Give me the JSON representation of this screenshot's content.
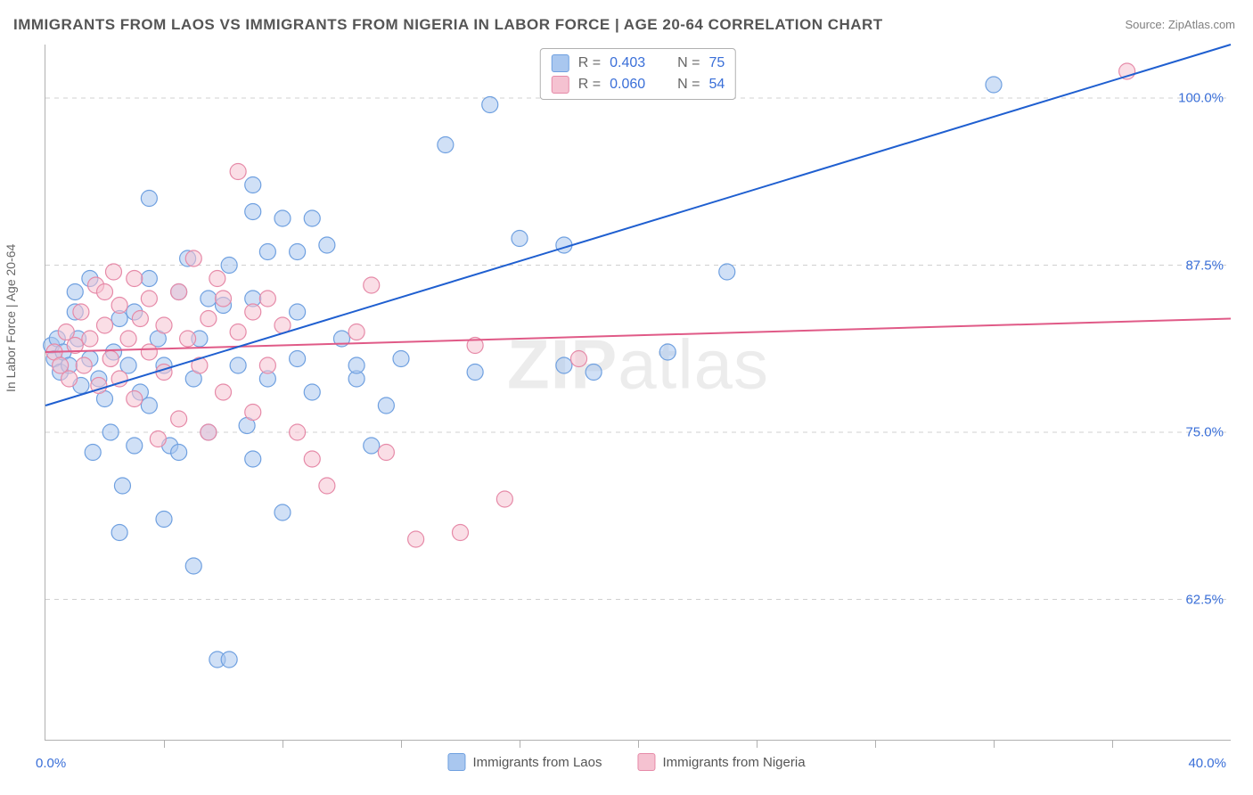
{
  "title": "IMMIGRANTS FROM LAOS VS IMMIGRANTS FROM NIGERIA IN LABOR FORCE | AGE 20-64 CORRELATION CHART",
  "source_label": "Source: ZipAtlas.com",
  "y_axis_title": "In Labor Force | Age 20-64",
  "x_axis": {
    "min": 0.0,
    "max": 40.0,
    "label_min": "0.0%",
    "label_max": "40.0%",
    "tick_positions_pct": [
      10,
      20,
      30,
      40,
      50,
      60,
      70,
      80,
      90
    ]
  },
  "y_axis": {
    "min": 52.0,
    "max": 104.0,
    "gridlines": [
      {
        "value": 62.5,
        "label": "62.5%"
      },
      {
        "value": 75.0,
        "label": "75.0%"
      },
      {
        "value": 87.5,
        "label": "87.5%"
      },
      {
        "value": 100.0,
        "label": "100.0%"
      }
    ]
  },
  "watermark": {
    "bold": "ZIP",
    "rest": "atlas"
  },
  "series": {
    "laos": {
      "label": "Immigrants from Laos",
      "fill": "#a9c7ef",
      "stroke": "#6fa0e0",
      "opacity": 0.55,
      "line_color": "#1f5fd0",
      "line_width": 2,
      "r_value": "0.403",
      "n_value": "75",
      "trend_start": {
        "x": 0.0,
        "y": 77.0
      },
      "trend_end": {
        "x": 40.0,
        "y": 104.0
      },
      "points": [
        {
          "x": 0.2,
          "y": 81.5
        },
        {
          "x": 0.3,
          "y": 80.5
        },
        {
          "x": 0.4,
          "y": 82.0
        },
        {
          "x": 0.5,
          "y": 79.5
        },
        {
          "x": 0.6,
          "y": 81.0
        },
        {
          "x": 0.8,
          "y": 80.0
        },
        {
          "x": 1.0,
          "y": 84.0
        },
        {
          "x": 1.1,
          "y": 82.0
        },
        {
          "x": 1.2,
          "y": 78.5
        },
        {
          "x": 1.0,
          "y": 85.5
        },
        {
          "x": 1.5,
          "y": 80.5
        },
        {
          "x": 1.5,
          "y": 86.5
        },
        {
          "x": 1.6,
          "y": 73.5
        },
        {
          "x": 1.8,
          "y": 79.0
        },
        {
          "x": 2.0,
          "y": 77.5
        },
        {
          "x": 2.2,
          "y": 75.0
        },
        {
          "x": 2.3,
          "y": 81.0
        },
        {
          "x": 2.5,
          "y": 83.5
        },
        {
          "x": 2.5,
          "y": 67.5
        },
        {
          "x": 2.6,
          "y": 71.0
        },
        {
          "x": 2.8,
          "y": 80.0
        },
        {
          "x": 3.0,
          "y": 84.0
        },
        {
          "x": 3.0,
          "y": 74.0
        },
        {
          "x": 3.2,
          "y": 78.0
        },
        {
          "x": 3.5,
          "y": 86.5
        },
        {
          "x": 3.5,
          "y": 77.0
        },
        {
          "x": 3.8,
          "y": 82.0
        },
        {
          "x": 3.5,
          "y": 92.5
        },
        {
          "x": 4.0,
          "y": 80.0
        },
        {
          "x": 4.0,
          "y": 68.5
        },
        {
          "x": 4.2,
          "y": 74.0
        },
        {
          "x": 4.5,
          "y": 85.5
        },
        {
          "x": 4.5,
          "y": 73.5
        },
        {
          "x": 4.8,
          "y": 88.0
        },
        {
          "x": 5.0,
          "y": 79.0
        },
        {
          "x": 5.0,
          "y": 65.0
        },
        {
          "x": 5.2,
          "y": 82.0
        },
        {
          "x": 5.5,
          "y": 85.0
        },
        {
          "x": 5.5,
          "y": 75.0
        },
        {
          "x": 5.8,
          "y": 58.0
        },
        {
          "x": 6.0,
          "y": 84.5
        },
        {
          "x": 6.2,
          "y": 58.0
        },
        {
          "x": 6.2,
          "y": 87.5
        },
        {
          "x": 6.5,
          "y": 80.0
        },
        {
          "x": 6.8,
          "y": 75.5
        },
        {
          "x": 7.0,
          "y": 93.5
        },
        {
          "x": 7.0,
          "y": 85.0
        },
        {
          "x": 7.0,
          "y": 73.0
        },
        {
          "x": 7.0,
          "y": 91.5
        },
        {
          "x": 7.5,
          "y": 79.0
        },
        {
          "x": 7.5,
          "y": 88.5
        },
        {
          "x": 8.0,
          "y": 91.0
        },
        {
          "x": 8.0,
          "y": 69.0
        },
        {
          "x": 8.5,
          "y": 80.5
        },
        {
          "x": 8.5,
          "y": 88.5
        },
        {
          "x": 8.5,
          "y": 84.0
        },
        {
          "x": 9.0,
          "y": 78.0
        },
        {
          "x": 9.5,
          "y": 89.0
        },
        {
          "x": 9.0,
          "y": 91.0
        },
        {
          "x": 10.0,
          "y": 82.0
        },
        {
          "x": 10.5,
          "y": 79.0
        },
        {
          "x": 10.5,
          "y": 80.0
        },
        {
          "x": 11.0,
          "y": 74.0
        },
        {
          "x": 11.5,
          "y": 77.0
        },
        {
          "x": 12.0,
          "y": 80.5
        },
        {
          "x": 13.5,
          "y": 96.5
        },
        {
          "x": 14.5,
          "y": 79.5
        },
        {
          "x": 15.0,
          "y": 99.5
        },
        {
          "x": 16.0,
          "y": 89.5
        },
        {
          "x": 17.5,
          "y": 89.0
        },
        {
          "x": 17.5,
          "y": 80.0
        },
        {
          "x": 18.5,
          "y": 79.5
        },
        {
          "x": 21.0,
          "y": 81.0
        },
        {
          "x": 23.0,
          "y": 87.0
        },
        {
          "x": 32.0,
          "y": 101.0
        }
      ]
    },
    "nigeria": {
      "label": "Immigrants from Nigeria",
      "fill": "#f5c2d1",
      "stroke": "#e68aa8",
      "opacity": 0.55,
      "line_color": "#e05a87",
      "line_width": 2,
      "r_value": "0.060",
      "n_value": "54",
      "trend_start": {
        "x": 0.0,
        "y": 81.0
      },
      "trend_end": {
        "x": 40.0,
        "y": 83.5
      },
      "points": [
        {
          "x": 0.3,
          "y": 81.0
        },
        {
          "x": 0.5,
          "y": 80.0
        },
        {
          "x": 0.7,
          "y": 82.5
        },
        {
          "x": 0.8,
          "y": 79.0
        },
        {
          "x": 1.0,
          "y": 81.5
        },
        {
          "x": 1.2,
          "y": 84.0
        },
        {
          "x": 1.3,
          "y": 80.0
        },
        {
          "x": 1.5,
          "y": 82.0
        },
        {
          "x": 1.7,
          "y": 86.0
        },
        {
          "x": 1.8,
          "y": 78.5
        },
        {
          "x": 2.0,
          "y": 83.0
        },
        {
          "x": 2.0,
          "y": 85.5
        },
        {
          "x": 2.2,
          "y": 80.5
        },
        {
          "x": 2.3,
          "y": 87.0
        },
        {
          "x": 2.5,
          "y": 79.0
        },
        {
          "x": 2.5,
          "y": 84.5
        },
        {
          "x": 2.8,
          "y": 82.0
        },
        {
          "x": 3.0,
          "y": 86.5
        },
        {
          "x": 3.0,
          "y": 77.5
        },
        {
          "x": 3.2,
          "y": 83.5
        },
        {
          "x": 3.5,
          "y": 81.0
        },
        {
          "x": 3.5,
          "y": 85.0
        },
        {
          "x": 3.8,
          "y": 74.5
        },
        {
          "x": 4.0,
          "y": 83.0
        },
        {
          "x": 4.0,
          "y": 79.5
        },
        {
          "x": 4.5,
          "y": 85.5
        },
        {
          "x": 4.5,
          "y": 76.0
        },
        {
          "x": 4.8,
          "y": 82.0
        },
        {
          "x": 5.0,
          "y": 88.0
        },
        {
          "x": 5.2,
          "y": 80.0
        },
        {
          "x": 5.5,
          "y": 75.0
        },
        {
          "x": 5.5,
          "y": 83.5
        },
        {
          "x": 6.0,
          "y": 85.0
        },
        {
          "x": 6.0,
          "y": 78.0
        },
        {
          "x": 5.8,
          "y": 86.5
        },
        {
          "x": 6.5,
          "y": 82.5
        },
        {
          "x": 6.5,
          "y": 94.5
        },
        {
          "x": 7.0,
          "y": 84.0
        },
        {
          "x": 7.0,
          "y": 76.5
        },
        {
          "x": 7.5,
          "y": 80.0
        },
        {
          "x": 7.5,
          "y": 85.0
        },
        {
          "x": 8.0,
          "y": 83.0
        },
        {
          "x": 8.5,
          "y": 75.0
        },
        {
          "x": 9.0,
          "y": 73.0
        },
        {
          "x": 9.5,
          "y": 71.0
        },
        {
          "x": 10.5,
          "y": 82.5
        },
        {
          "x": 11.0,
          "y": 86.0
        },
        {
          "x": 11.5,
          "y": 73.5
        },
        {
          "x": 12.5,
          "y": 67.0
        },
        {
          "x": 14.0,
          "y": 67.5
        },
        {
          "x": 14.5,
          "y": 81.5
        },
        {
          "x": 15.5,
          "y": 70.0
        },
        {
          "x": 18.0,
          "y": 80.5
        },
        {
          "x": 36.5,
          "y": 102.0
        }
      ]
    }
  },
  "marker_radius": 9,
  "chart_bg": "#ffffff",
  "grid_color": "#d0d0d0",
  "axis_color": "#b0b0b0",
  "tick_label_color": "#3a6fd8"
}
